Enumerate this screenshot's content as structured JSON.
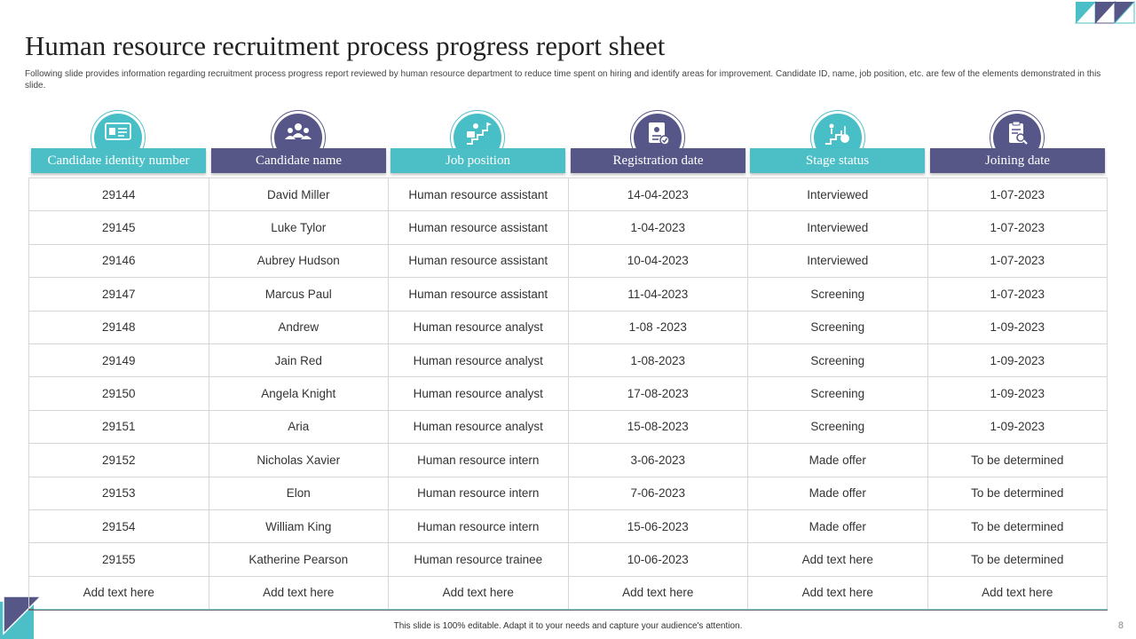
{
  "title": "Human resource recruitment process progress report sheet",
  "subtitle": "Following slide provides information regarding recruitment process progress report reviewed by human resource department to reduce time spent on hiring and identify areas for improvement. Candidate ID,  name, job position, etc. are few of the elements demonstrated in this slide.",
  "table": {
    "headers": [
      {
        "label": "Candidate identity number",
        "icon": "id-card-icon"
      },
      {
        "label": "Candidate name",
        "icon": "team-icon"
      },
      {
        "label": "Job position",
        "icon": "career-climb-icon"
      },
      {
        "label": "Registration date",
        "icon": "document-badge-icon"
      },
      {
        "label": "Stage status",
        "icon": "stairs-progress-icon"
      },
      {
        "label": "Joining date",
        "icon": "clipboard-search-icon"
      }
    ],
    "rows": [
      [
        "29144",
        "David  Miller",
        "Human resource  assistant",
        "14-04-2023",
        "Interviewed",
        "1-07-2023"
      ],
      [
        "29145",
        "Luke Tylor",
        "Human resource  assistant",
        "1-04-2023",
        "Interviewed",
        "1-07-2023"
      ],
      [
        "29146",
        "Aubrey Hudson",
        "Human resource  assistant",
        "10-04-2023",
        "Interviewed",
        "1-07-2023"
      ],
      [
        "29147",
        "Marcus Paul",
        "Human resource  assistant",
        "11-04-2023",
        "Screening",
        "1-07-2023"
      ],
      [
        "29148",
        "Andrew",
        "Human  resource  analyst",
        "1-08 -2023",
        "Screening",
        "1-09-2023"
      ],
      [
        "29149",
        "Jain Red",
        "Human  resource  analyst",
        "1-08-2023",
        "Screening",
        "1-09-2023"
      ],
      [
        "29150",
        "Angela Knight",
        "Human  resource  analyst",
        "17-08-2023",
        "Screening",
        "1-09-2023"
      ],
      [
        "29151",
        "Aria",
        "Human  resource  analyst",
        "15-08-2023",
        "Screening",
        "1-09-2023"
      ],
      [
        "29152",
        "Nicholas Xavier",
        "Human  resource  intern",
        "3-06-2023",
        "Made offer",
        "To  be determined"
      ],
      [
        "29153",
        "Elon",
        "Human  resource  intern",
        "7-06-2023",
        "Made offer",
        "To  be determined"
      ],
      [
        "29154",
        "William King",
        "Human  resource  intern",
        "15-06-2023",
        "Made offer",
        "To  be determined"
      ],
      [
        "29155",
        "Katherine Pearson",
        "Human resource  trainee",
        "10-06-2023",
        "Add text here",
        "To  be determined"
      ],
      [
        "Add text here",
        "Add text here",
        "Add text here",
        "Add text here",
        "Add text here",
        "Add text here"
      ]
    ]
  },
  "footer": "This slide is 100% editable. Adapt it to your needs and capture your audience's attention.",
  "page_number": "8",
  "colors": {
    "teal": "#4cbfc6",
    "purple": "#575787"
  }
}
